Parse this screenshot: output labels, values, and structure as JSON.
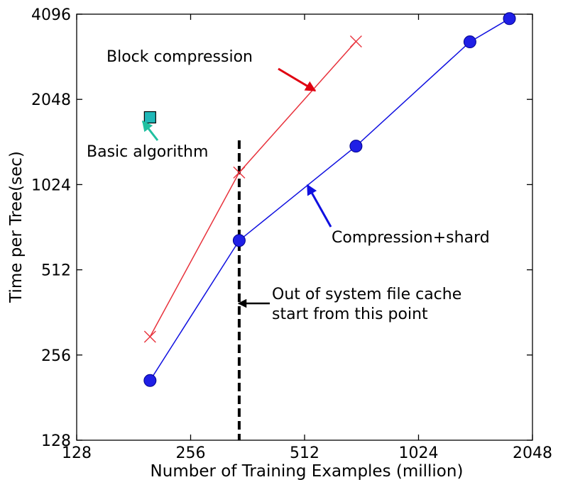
{
  "chart_data": {
    "type": "line",
    "xlabel": "Number of Training Examples (million)",
    "ylabel": "Time per Tree(sec)",
    "xscale": "log2",
    "yscale": "log2",
    "xlim": [
      128,
      2048
    ],
    "ylim": [
      128,
      4096
    ],
    "xticks": [
      "128",
      "256",
      "512",
      "1024",
      "2048"
    ],
    "yticks": [
      "128",
      "256",
      "512",
      "1024",
      "2048",
      "4096"
    ],
    "grid": false,
    "legend": "none",
    "series": [
      {
        "key": "block",
        "color": "#e8323c",
        "marker": "x",
        "x": [
          200,
          344,
          700
        ],
        "y": [
          297,
          1130,
          3280
        ]
      },
      {
        "key": "shard",
        "color": "#1010e0",
        "marker": "circle",
        "x": [
          200,
          344,
          700,
          1400,
          1780
        ],
        "y": [
          208,
          650,
          1400,
          3270,
          3950
        ]
      },
      {
        "key": "basic",
        "color": "#20b8b8",
        "marker": "square",
        "x": [
          200
        ],
        "y": [
          1770
        ]
      }
    ],
    "vline": {
      "x": 344,
      "style": "dashed"
    },
    "annotations": [
      {
        "key": "block",
        "text": "Block compression",
        "color": "#e00010"
      },
      {
        "key": "basic",
        "text": "Basic algorithm",
        "color": "#20c0a0"
      },
      {
        "key": "shard",
        "text": "Compression+shard",
        "color": "#1010e0"
      },
      {
        "key": "cache",
        "text": "Out of system file cache",
        "text2": "start from this point",
        "color": "#000000"
      }
    ]
  }
}
